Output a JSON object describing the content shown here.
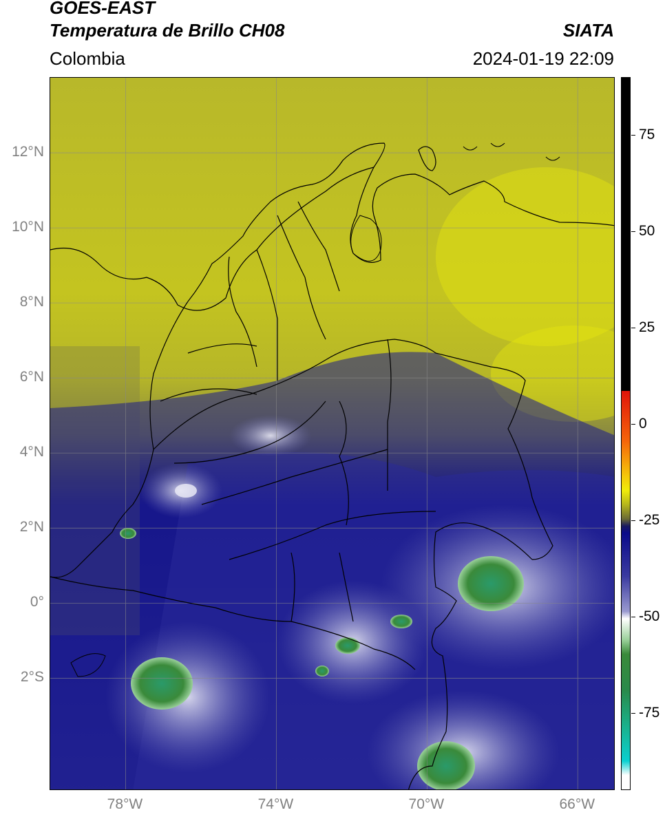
{
  "header": {
    "satellite": "GOES-EAST",
    "product": "Temperatura de Brillo CH08",
    "organization": "SIATA",
    "region": "Colombia",
    "datetime": "2024-01-19 22:09"
  },
  "map": {
    "lon_range": [
      -80,
      -65
    ],
    "lat_range": [
      -5,
      14
    ],
    "lat_ticks": [
      {
        "value": 12,
        "label": "12°N"
      },
      {
        "value": 10,
        "label": "10°N"
      },
      {
        "value": 8,
        "label": "8°N"
      },
      {
        "value": 6,
        "label": "6°N"
      },
      {
        "value": 4,
        "label": "4°N"
      },
      {
        "value": 2,
        "label": "2°N"
      },
      {
        "value": 0,
        "label": "0°"
      },
      {
        "value": -2,
        "label": "2°S"
      }
    ],
    "lon_ticks": [
      {
        "value": -78,
        "label": "78°W"
      },
      {
        "value": -74,
        "label": "74°W"
      },
      {
        "value": -70,
        "label": "70°W"
      },
      {
        "value": -66,
        "label": "66°W"
      }
    ],
    "grid": true,
    "colors": {
      "warm_yellow": "#c9c91c",
      "cloud_blue": "#14148a",
      "cold_white": "#e6e6f4",
      "coldest_green": "#3a8a3a"
    }
  },
  "colorbar": {
    "range": [
      -95,
      90
    ],
    "ticks": [
      {
        "value": 75,
        "label": "75"
      },
      {
        "value": 50,
        "label": "50"
      },
      {
        "value": 25,
        "label": "25"
      },
      {
        "value": 0,
        "label": "0"
      },
      {
        "value": -25,
        "label": "-25"
      },
      {
        "value": -50,
        "label": "-50"
      },
      {
        "value": -75,
        "label": "-75"
      }
    ]
  }
}
